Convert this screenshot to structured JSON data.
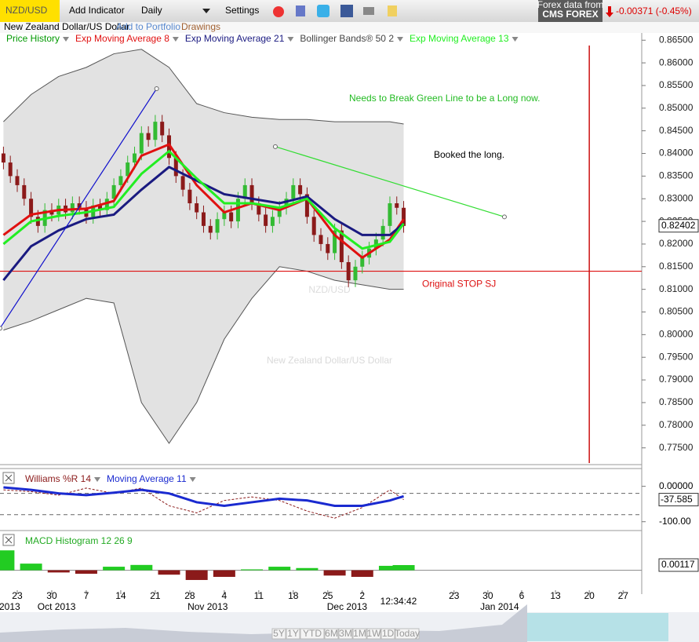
{
  "toolbar": {
    "symbol": "NZD/USD",
    "add_indicator": "Add Indicator",
    "interval": "Daily",
    "settings": "Settings",
    "data_from": "Forex data from",
    "provider": "CMS FOREX",
    "change": "-0.00371 (-0.45%)"
  },
  "subbar": {
    "name": "New Zealand Dollar/US Dollar",
    "add_portfolio": "Add to Portfolio",
    "drawings": "Drawings"
  },
  "chart_data": {
    "type": "candlestick",
    "watermark": {
      "symbol": "NZD/USD",
      "name": "New Zealand Dollar/US Dollar"
    },
    "xlim": [
      -0.5,
      92.5
    ],
    "ylim": [
      0.7713,
      0.8666
    ],
    "yticks": [
      {
        "value": 0.865,
        "label": "0.86500"
      },
      {
        "value": 0.86,
        "label": "0.86000"
      },
      {
        "value": 0.855,
        "label": "0.85500"
      },
      {
        "value": 0.85,
        "label": "0.85000"
      },
      {
        "value": 0.845,
        "label": "0.84500"
      },
      {
        "value": 0.84,
        "label": "0.84000"
      },
      {
        "value": 0.835,
        "label": "0.83500"
      },
      {
        "value": 0.83,
        "label": "0.83000"
      },
      {
        "value": 0.825,
        "label": "0.82500"
      },
      {
        "value": 0.82,
        "label": "0.82000"
      },
      {
        "value": 0.815,
        "label": "0.81500"
      },
      {
        "value": 0.81,
        "label": "0.81000"
      },
      {
        "value": 0.805,
        "label": "0.80500"
      },
      {
        "value": 0.8,
        "label": "0.80000"
      },
      {
        "value": 0.795,
        "label": "0.79500"
      },
      {
        "value": 0.79,
        "label": "0.79000"
      },
      {
        "value": 0.785,
        "label": "0.78500"
      },
      {
        "value": 0.78,
        "label": "0.78000"
      },
      {
        "value": 0.775,
        "label": "0.77500"
      }
    ],
    "xticks": [
      {
        "value": 2,
        "label": "23"
      },
      {
        "value": 7,
        "label": "30"
      },
      {
        "value": 12,
        "label": "7"
      },
      {
        "value": 17,
        "label": "14"
      },
      {
        "value": 22,
        "label": "21"
      },
      {
        "value": 27,
        "label": "28"
      },
      {
        "value": 32,
        "label": "4"
      },
      {
        "value": 37,
        "label": "11"
      },
      {
        "value": 42,
        "label": "18"
      },
      {
        "value": 47,
        "label": "25"
      },
      {
        "value": 52,
        "label": "2"
      },
      {
        "value": 65.3,
        "label": "23"
      },
      {
        "value": 70.2,
        "label": "30"
      },
      {
        "value": 75.1,
        "label": "6"
      },
      {
        "value": 80,
        "label": "13"
      },
      {
        "value": 84.9,
        "label": "20"
      },
      {
        "value": 89.8,
        "label": "27"
      }
    ],
    "xmonths": [
      {
        "value": 0.9,
        "label": "2013"
      },
      {
        "value": 7.7,
        "label": "Oct 2013"
      },
      {
        "value": 29.6,
        "label": "Nov 2013"
      },
      {
        "value": 49.8,
        "label": "Dec 2013"
      },
      {
        "value": 71.9,
        "label": "Jan 2014"
      }
    ],
    "time": "12:34:42",
    "last_price": {
      "value": 0.82402,
      "label": "0.82402"
    },
    "candles": {
      "name": "Price History",
      "up_color": "#33bb33",
      "down_color": "#8b1a1a",
      "x": [
        0,
        1,
        2,
        3,
        4,
        5,
        6,
        7,
        8,
        9,
        10,
        11,
        12,
        13,
        14,
        15,
        16,
        17,
        18,
        19,
        20,
        21,
        22,
        23,
        24,
        25,
        26,
        27,
        28,
        29,
        30,
        31,
        32,
        33,
        34,
        35,
        36,
        37,
        38,
        39,
        40,
        41,
        42,
        43,
        44,
        45,
        46,
        47,
        48,
        49,
        50,
        51,
        52,
        53,
        54,
        55,
        56,
        57,
        58
      ],
      "open": [
        0.84,
        0.838,
        0.835,
        0.833,
        0.83,
        0.826,
        0.824,
        0.8275,
        0.8265,
        0.8285,
        0.827,
        0.829,
        0.828,
        0.826,
        0.8285,
        0.8275,
        0.83,
        0.833,
        0.835,
        0.838,
        0.84,
        0.8445,
        0.843,
        0.847,
        0.844,
        0.839,
        0.835,
        0.832,
        0.829,
        0.827,
        0.824,
        0.8225,
        0.8255,
        0.827,
        0.825,
        0.83,
        0.833,
        0.829,
        0.8265,
        0.824,
        0.826,
        0.828,
        0.83,
        0.833,
        0.831,
        0.826,
        0.822,
        0.82,
        0.818,
        0.823,
        0.816,
        0.812,
        0.815,
        0.817,
        0.819,
        0.821,
        0.824,
        0.829,
        0.828
      ],
      "high": [
        0.8415,
        0.8395,
        0.8365,
        0.8345,
        0.8315,
        0.8275,
        0.829,
        0.829,
        0.83,
        0.83,
        0.8305,
        0.8305,
        0.8295,
        0.83,
        0.83,
        0.8315,
        0.8345,
        0.8365,
        0.8395,
        0.8415,
        0.846,
        0.846,
        0.8485,
        0.8485,
        0.8455,
        0.8405,
        0.8365,
        0.8335,
        0.8305,
        0.8285,
        0.8255,
        0.827,
        0.8285,
        0.8285,
        0.8315,
        0.8345,
        0.8345,
        0.8305,
        0.828,
        0.8275,
        0.8295,
        0.8315,
        0.8345,
        0.8345,
        0.8325,
        0.8275,
        0.8235,
        0.8215,
        0.8245,
        0.8245,
        0.8175,
        0.8165,
        0.8185,
        0.8205,
        0.8225,
        0.8255,
        0.8305,
        0.8305,
        0.8295
      ],
      "low": [
        0.8365,
        0.8335,
        0.8315,
        0.8285,
        0.8245,
        0.8225,
        0.8225,
        0.825,
        0.825,
        0.8255,
        0.8255,
        0.8265,
        0.8245,
        0.8245,
        0.826,
        0.826,
        0.8285,
        0.8315,
        0.8335,
        0.8365,
        0.8385,
        0.8415,
        0.8415,
        0.8425,
        0.8375,
        0.8335,
        0.8305,
        0.8275,
        0.8255,
        0.8225,
        0.821,
        0.821,
        0.824,
        0.8235,
        0.8235,
        0.8285,
        0.8275,
        0.825,
        0.8225,
        0.8225,
        0.8245,
        0.8265,
        0.8285,
        0.8295,
        0.8245,
        0.8205,
        0.8185,
        0.8165,
        0.8165,
        0.8145,
        0.8105,
        0.8105,
        0.8135,
        0.8155,
        0.8175,
        0.8195,
        0.8225,
        0.8265,
        0.8225
      ],
      "close": [
        0.838,
        0.835,
        0.833,
        0.83,
        0.826,
        0.824,
        0.8275,
        0.8265,
        0.8285,
        0.827,
        0.829,
        0.828,
        0.826,
        0.8285,
        0.8275,
        0.83,
        0.833,
        0.835,
        0.838,
        0.84,
        0.8445,
        0.843,
        0.847,
        0.844,
        0.839,
        0.835,
        0.832,
        0.829,
        0.827,
        0.824,
        0.8225,
        0.8255,
        0.827,
        0.825,
        0.83,
        0.833,
        0.829,
        0.8265,
        0.824,
        0.826,
        0.828,
        0.83,
        0.833,
        0.831,
        0.826,
        0.822,
        0.82,
        0.818,
        0.823,
        0.816,
        0.812,
        0.815,
        0.817,
        0.819,
        0.821,
        0.824,
        0.829,
        0.828,
        0.824
      ]
    },
    "overlays": [
      {
        "name": "Exp Moving Average 8",
        "color": "#e01010",
        "x": [
          0,
          4,
          8,
          12,
          16,
          20,
          24,
          28,
          32,
          36,
          40,
          44,
          48,
          52,
          56,
          58
        ],
        "values": [
          0.822,
          0.8265,
          0.8275,
          0.8278,
          0.8295,
          0.8395,
          0.842,
          0.833,
          0.827,
          0.829,
          0.8275,
          0.83,
          0.822,
          0.817,
          0.821,
          0.8255
        ]
      },
      {
        "name": "Exp Moving Average 21",
        "color": "#1a1a80",
        "x": [
          0,
          4,
          8,
          12,
          16,
          20,
          24,
          28,
          32,
          36,
          40,
          44,
          48,
          52,
          56,
          58
        ],
        "values": [
          0.812,
          0.8195,
          0.823,
          0.8255,
          0.8265,
          0.832,
          0.837,
          0.834,
          0.831,
          0.83,
          0.829,
          0.8305,
          0.8255,
          0.822,
          0.822,
          0.8245
        ]
      },
      {
        "name": "Bollinger Bands® 50 2",
        "color": "#555555",
        "x": [
          0,
          4,
          8,
          12,
          16,
          20,
          24,
          28,
          32,
          36,
          40,
          44,
          48,
          52,
          56,
          58
        ],
        "upper": [
          0.847,
          0.853,
          0.857,
          0.859,
          0.862,
          0.863,
          0.859,
          0.851,
          0.849,
          0.848,
          0.8475,
          0.8475,
          0.847,
          0.847,
          0.847,
          0.8465
        ],
        "lower": [
          0.801,
          0.803,
          0.8055,
          0.808,
          0.807,
          0.785,
          0.776,
          0.785,
          0.799,
          0.808,
          0.815,
          0.814,
          0.812,
          0.811,
          0.81,
          0.81
        ]
      },
      {
        "name": "Exp Moving Average 13",
        "color": "#22ee22",
        "x": [
          0,
          4,
          8,
          12,
          16,
          20,
          24,
          28,
          32,
          36,
          40,
          44,
          48,
          52,
          56,
          58
        ],
        "values": [
          0.82,
          0.825,
          0.8262,
          0.827,
          0.8282,
          0.8355,
          0.8405,
          0.8345,
          0.829,
          0.829,
          0.828,
          0.83,
          0.8235,
          0.819,
          0.8205,
          0.8245
        ]
      }
    ],
    "trendlines": [
      {
        "color": "#1010cc",
        "x": [
          -0.5,
          22.2
        ],
        "values": [
          0.8014,
          0.8543
        ]
      },
      {
        "color": "#33dd33",
        "x": [
          39.4,
          72.6
        ],
        "values": [
          0.8415,
          0.826
        ]
      }
    ],
    "stop": {
      "value": 0.814,
      "label": "Original STOP SJ",
      "color": "#dd1111"
    },
    "vline": {
      "x": 84.9,
      "color": "#cc1111"
    },
    "annotations": [
      {
        "text": "Needs to Break Green Line to be a Long now.",
        "color": "#22bb22"
      },
      {
        "text": "Booked the long.",
        "color": "#000000"
      }
    ],
    "williams": {
      "ylim": [
        -125,
        48
      ],
      "yticks": [
        {
          "value": 0,
          "label": "0.00000"
        },
        {
          "value": -100,
          "label": "-100.00"
        }
      ],
      "levels": [
        -20,
        -80
      ],
      "last": {
        "value": -37.585,
        "label": "-37.585"
      },
      "series": [
        {
          "name": "Williams %R 14",
          "color": "#8b1a1a",
          "x": [
            0,
            4,
            8,
            12,
            16,
            20,
            24,
            28,
            32,
            36,
            40,
            44,
            48,
            52,
            56,
            58
          ],
          "values": [
            -10,
            -15,
            -25,
            -5,
            -20,
            -5,
            -55,
            -75,
            -40,
            -30,
            -40,
            -70,
            -90,
            -60,
            -10,
            -37.585
          ]
        },
        {
          "name": "Moving Average 11",
          "color": "#1a2ad0",
          "x": [
            0,
            4,
            8,
            12,
            16,
            20,
            24,
            28,
            32,
            36,
            40,
            44,
            48,
            52,
            56,
            58
          ],
          "values": [
            -3,
            -10,
            -20,
            -25,
            -18,
            -10,
            -20,
            -45,
            -55,
            -45,
            -35,
            -40,
            -55,
            -55,
            -40,
            -28
          ]
        }
      ]
    },
    "macd": {
      "name": "MACD Histogram 12 26 9",
      "ylim": [
        -0.0054,
        0.0088
      ],
      "up_color": "#22cc22",
      "down_color": "#8b1a1a",
      "last": {
        "value": 0.00117,
        "label": "0.00117"
      },
      "x": [
        0,
        4,
        8,
        12,
        16,
        20,
        24,
        28,
        32,
        36,
        40,
        44,
        48,
        52,
        56,
        58
      ],
      "values": [
        0.0045,
        0.0015,
        -0.0005,
        -0.0008,
        0.0008,
        0.0012,
        -0.001,
        -0.0022,
        -0.0015,
        0.0002,
        0.0008,
        0.0005,
        -0.0012,
        -0.0015,
        0.001,
        0.00117
      ]
    }
  },
  "navigator": {
    "ranges": [
      "5Y",
      "1Y",
      "YTD",
      "6M",
      "3M",
      "1M",
      "1W",
      "1D",
      "Today"
    ]
  }
}
